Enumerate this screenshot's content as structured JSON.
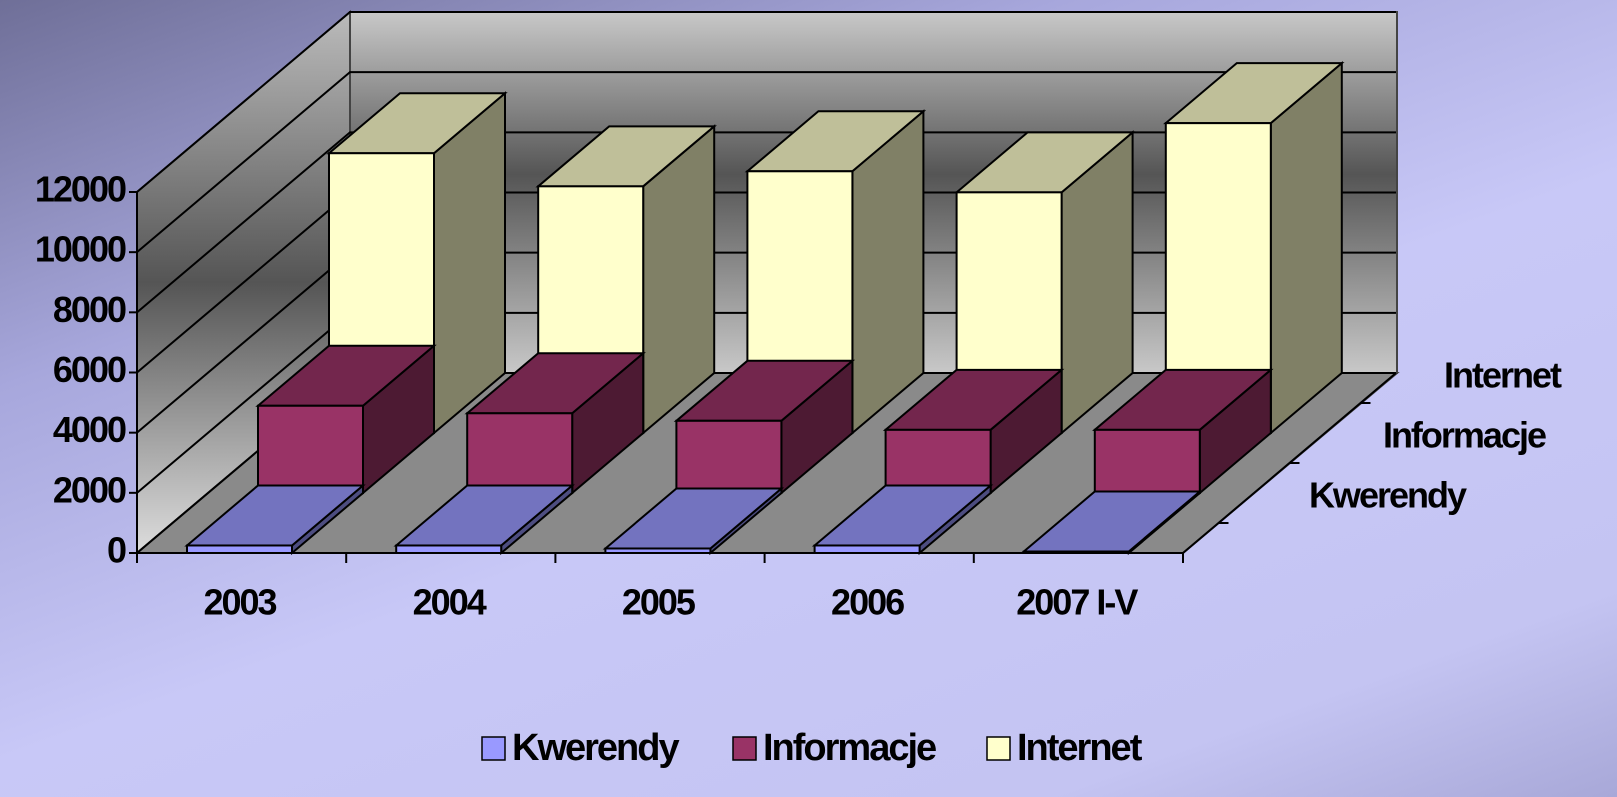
{
  "chart_data": {
    "type": "bar3d-stacked-depth",
    "categories": [
      "2003",
      "2004",
      "2005",
      "2006",
      "2007 I-V"
    ],
    "series": [
      {
        "name": "Kwerendy",
        "color": "#9999ff",
        "values": [
          250,
          250,
          150,
          250,
          50
        ]
      },
      {
        "name": "Informacje",
        "color": "#993366",
        "values": [
          2900,
          2650,
          2400,
          2100,
          2100
        ]
      },
      {
        "name": "Internet",
        "color": "#ffffcc",
        "values": [
          9300,
          8200,
          8700,
          8000,
          10300
        ]
      }
    ],
    "ylim": [
      0,
      12000
    ],
    "yticks": [
      0,
      2000,
      4000,
      6000,
      8000,
      10000,
      12000
    ],
    "grid": true,
    "legend": "bottom"
  }
}
